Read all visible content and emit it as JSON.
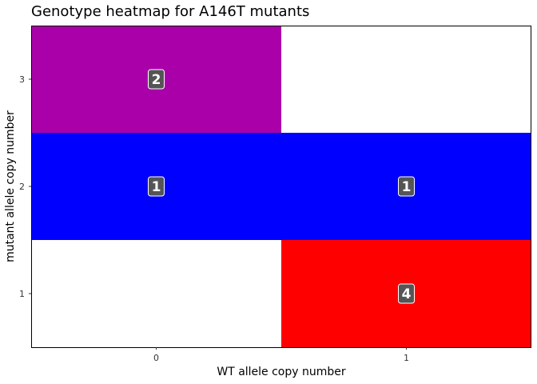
{
  "chart_data": {
    "type": "heatmap",
    "title": "Genotype heatmap for A146T mutants",
    "xlabel": "WT allele copy number",
    "ylabel": "mutant allele copy number",
    "x_categories": [
      "0",
      "1"
    ],
    "y_categories": [
      "1",
      "2",
      "3"
    ],
    "cells": [
      {
        "x": "0",
        "y": "3",
        "count": 2,
        "color": "#aa00aa",
        "label": "2"
      },
      {
        "x": "1",
        "y": "3",
        "count": 0,
        "color": "#ffffff",
        "label": ""
      },
      {
        "x": "0",
        "y": "2",
        "count": 1,
        "color": "#0000ff",
        "label": "1"
      },
      {
        "x": "1",
        "y": "2",
        "count": 1,
        "color": "#0000ff",
        "label": "1"
      },
      {
        "x": "0",
        "y": "1",
        "count": 0,
        "color": "#ffffff",
        "label": ""
      },
      {
        "x": "1",
        "y": "1",
        "count": 4,
        "color": "#ff0000",
        "label": "4"
      }
    ],
    "legend": "none",
    "grid": false,
    "colors": {
      "label_box": "#555555",
      "label_text": "#ffffff",
      "border": "#000000"
    }
  }
}
